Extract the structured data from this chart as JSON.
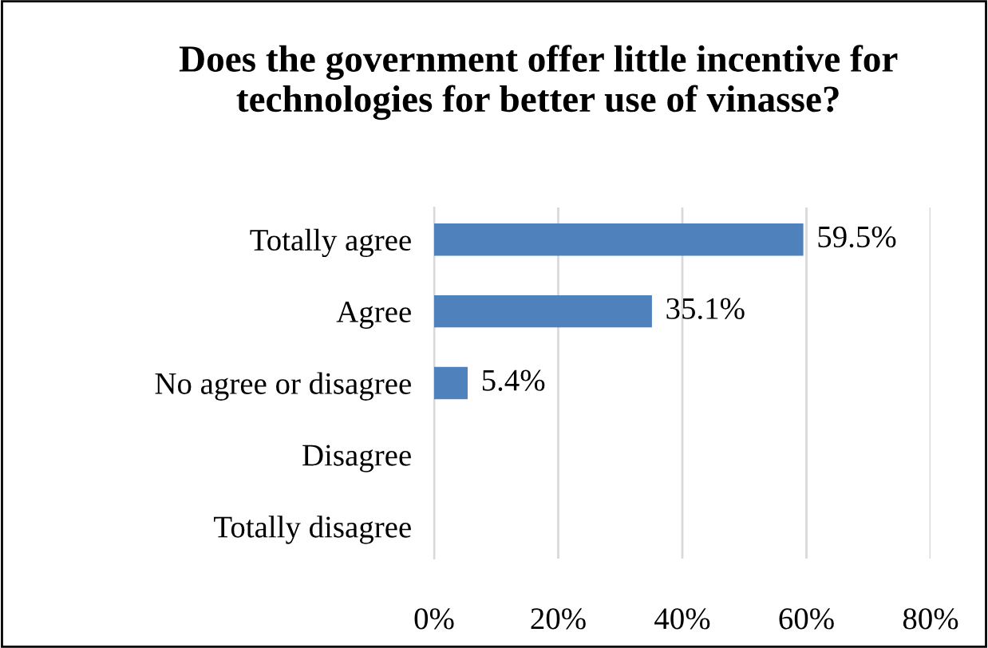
{
  "chart_data": {
    "type": "bar",
    "orientation": "horizontal",
    "title": "Does the government offer little incentive for technologies for better use of vinasse?",
    "categories": [
      "Totally agree",
      "Agree",
      "No agree or disagree",
      "Disagree",
      "Totally disagree"
    ],
    "values": [
      59.5,
      35.1,
      5.4,
      0,
      0
    ],
    "value_labels": [
      "59.5%",
      "35.1%",
      "5.4%",
      null,
      null
    ],
    "color": "#4f81bd",
    "xlim": [
      0,
      80
    ],
    "xticks": [
      {
        "value": 0,
        "label": "0%"
      },
      {
        "value": 20,
        "label": "20%"
      },
      {
        "value": 40,
        "label": "40%"
      },
      {
        "value": 60,
        "label": "60%"
      },
      {
        "value": 80,
        "label": "80%"
      }
    ],
    "grid": "x",
    "legend": false
  }
}
